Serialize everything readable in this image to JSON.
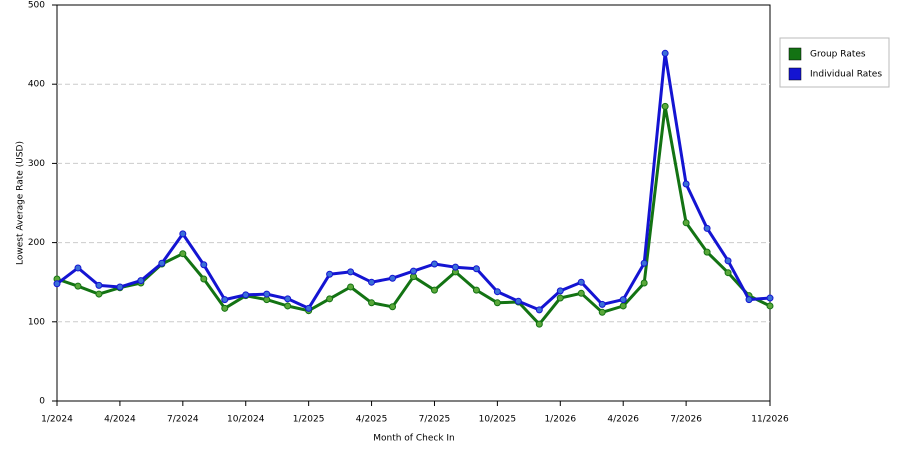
{
  "chart_data": {
    "type": "line",
    "x_label": "Month of Check In",
    "y_label": "Lowest Average Rate (USD)",
    "categories": [
      "1/2024",
      null,
      null,
      "4/2024",
      null,
      null,
      "7/2024",
      null,
      null,
      "10/2024",
      null,
      null,
      "1/2025",
      null,
      null,
      "4/2025",
      null,
      null,
      "7/2025",
      null,
      null,
      "10/2025",
      null,
      null,
      "1/2026",
      null,
      null,
      "4/2026",
      null,
      null,
      "7/2026",
      null,
      null,
      null,
      "11/2026"
    ],
    "series": [
      {
        "name": "Group Rates",
        "color": "#137313",
        "marker_color": "#5aa83a",
        "values": [
          154,
          145,
          135,
          143,
          149,
          173,
          186,
          154,
          117,
          133,
          128,
          120,
          114,
          129,
          144,
          124,
          119,
          157,
          140,
          163,
          140,
          124,
          125,
          97,
          130,
          136,
          112,
          120,
          149,
          372,
          225,
          188,
          162,
          133,
          120
        ]
      },
      {
        "name": "Individual Rates",
        "color": "#1414d2",
        "marker_color": "#3a6fd8",
        "values": [
          148,
          168,
          146,
          144,
          152,
          174,
          211,
          172,
          128,
          134,
          135,
          129,
          117,
          160,
          163,
          150,
          155,
          164,
          173,
          169,
          167,
          138,
          126,
          115,
          139,
          150,
          122,
          128,
          174,
          439,
          274,
          218,
          177,
          128,
          130
        ]
      }
    ],
    "ylim": [
      0,
      500
    ],
    "yticks": [
      0,
      100,
      200,
      300,
      400,
      500
    ],
    "grid": true,
    "legend": "right"
  }
}
